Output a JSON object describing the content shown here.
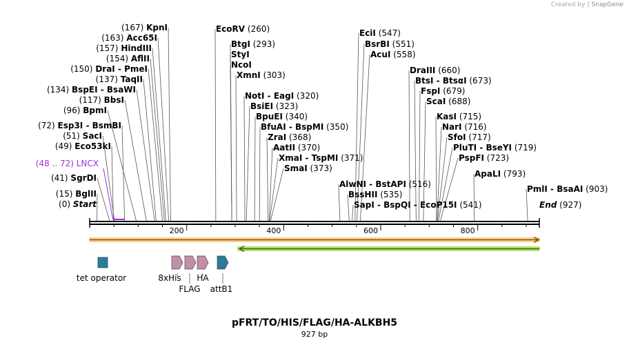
{
  "watermark": {
    "created_by": "Created by",
    "product": "SnapGene"
  },
  "plasmid": {
    "name": "pFRT/TO/HIS/FLAG/HA-ALKBH5",
    "size_label": "927 bp",
    "length": 927
  },
  "colors": {
    "enzyme_text": "#000000",
    "feature_label": "#9b30d9",
    "forward_arrow_fill": "#f7d48a",
    "forward_arrow_stroke": "#8a4b0f",
    "reverse_arrow_fill": "#b9e06a",
    "reverse_arrow_stroke": "#2a6b12",
    "operator": "#2e7a9a",
    "tag": "#c08fa8",
    "attb": "#2e7a9a"
  },
  "ruler": {
    "ticks": [
      "200",
      "400",
      "600",
      "800"
    ]
  },
  "left_sites": [
    {
      "pos": "(0)",
      "name": "Start",
      "italic": true,
      "bp": 0
    },
    {
      "pos": "(15)",
      "name": "BglII",
      "bp": 15
    },
    {
      "pos": "(41)",
      "name": "SgrDI",
      "bp": 41
    },
    {
      "pos": "(49)",
      "name": "Eco53kI",
      "bp": 49
    },
    {
      "pos": "(51)",
      "name": "SacI",
      "bp": 51
    },
    {
      "pos": "(72)",
      "name": "Esp3I  -  BsmBI",
      "bp": 72
    },
    {
      "pos": "(96)",
      "name": "BpmI",
      "bp": 96
    },
    {
      "pos": "(117)",
      "name": "BbsI",
      "bp": 117
    },
    {
      "pos": "(134)",
      "name": "BspEI  -  BsaWI",
      "bp": 134
    },
    {
      "pos": "(137)",
      "name": "TaqII",
      "bp": 137
    },
    {
      "pos": "(150)",
      "name": "DraI  -  PmeI",
      "bp": 150
    },
    {
      "pos": "(154)",
      "name": "AflII",
      "bp": 154
    },
    {
      "pos": "(157)",
      "name": "HindIII",
      "bp": 157
    },
    {
      "pos": "(163)",
      "name": "Acc65I",
      "bp": 163
    },
    {
      "pos": "(167)",
      "name": "KpnI",
      "bp": 167
    }
  ],
  "feature_label": {
    "range": "(48 .. 72)",
    "name": "LNCX",
    "start": 48,
    "end": 72
  },
  "right_sites": [
    {
      "name": "EcoRV",
      "pos": "(260)",
      "bp": 260
    },
    {
      "name": "BtgI",
      "pos": "(293)",
      "bp": 293
    },
    {
      "name": "StyI",
      "pos": "",
      "bp": 293
    },
    {
      "name": "NcoI",
      "pos": "",
      "bp": 293
    },
    {
      "name": "XmnI",
      "pos": "(303)",
      "bp": 303
    },
    {
      "name": "NotI  -  EagI",
      "pos": "(320)",
      "bp": 320
    },
    {
      "name": "BsiEI",
      "pos": "(323)",
      "bp": 323
    },
    {
      "name": "BpuEI",
      "pos": "(340)",
      "bp": 340
    },
    {
      "name": "BfuAI  -  BspMI",
      "pos": "(350)",
      "bp": 350
    },
    {
      "name": "ZraI",
      "pos": "(368)",
      "bp": 368
    },
    {
      "name": "AatII",
      "pos": "(370)",
      "bp": 370
    },
    {
      "name": "XmaI  -  TspMI",
      "pos": "(371)",
      "bp": 371
    },
    {
      "name": "SmaI",
      "pos": "(373)",
      "bp": 373
    },
    {
      "name": "EciI",
      "pos": "(547)",
      "bp": 547
    },
    {
      "name": "BsrBI",
      "pos": "(551)",
      "bp": 551
    },
    {
      "name": "AcuI",
      "pos": "(558)",
      "bp": 558
    },
    {
      "name": "AlwNI  -  BstAPI",
      "pos": "(516)",
      "bp": 516
    },
    {
      "name": "BssHII",
      "pos": "(535)",
      "bp": 535
    },
    {
      "name": "SapI  -  BspQI  -  EcoP15I",
      "pos": "(541)",
      "bp": 541
    },
    {
      "name": "DraIII",
      "pos": "(660)",
      "bp": 660
    },
    {
      "name": "BtsI  -  BtsαI",
      "pos": "(673)",
      "bp": 673
    },
    {
      "name": "FspI",
      "pos": "(679)",
      "bp": 679
    },
    {
      "name": "ScaI",
      "pos": "(688)",
      "bp": 688
    },
    {
      "name": "KasI",
      "pos": "(715)",
      "bp": 715
    },
    {
      "name": "NarI",
      "pos": "(716)",
      "bp": 716
    },
    {
      "name": "SfoI",
      "pos": "(717)",
      "bp": 717
    },
    {
      "name": "PluTI  -  BseYI",
      "pos": "(719)",
      "bp": 719
    },
    {
      "name": "PspFI",
      "pos": "(723)",
      "bp": 723
    },
    {
      "name": "ApaLI",
      "pos": "(793)",
      "bp": 793
    },
    {
      "name": "PmlI  -  BsaAI",
      "pos": "(903)",
      "bp": 903
    },
    {
      "name": "End",
      "pos": "(927)",
      "italic": true,
      "bp": 927
    }
  ],
  "features": {
    "operator": "tet operator",
    "his": "8xHis",
    "flag": "FLAG",
    "ha": "HA",
    "attb": "attB1"
  }
}
